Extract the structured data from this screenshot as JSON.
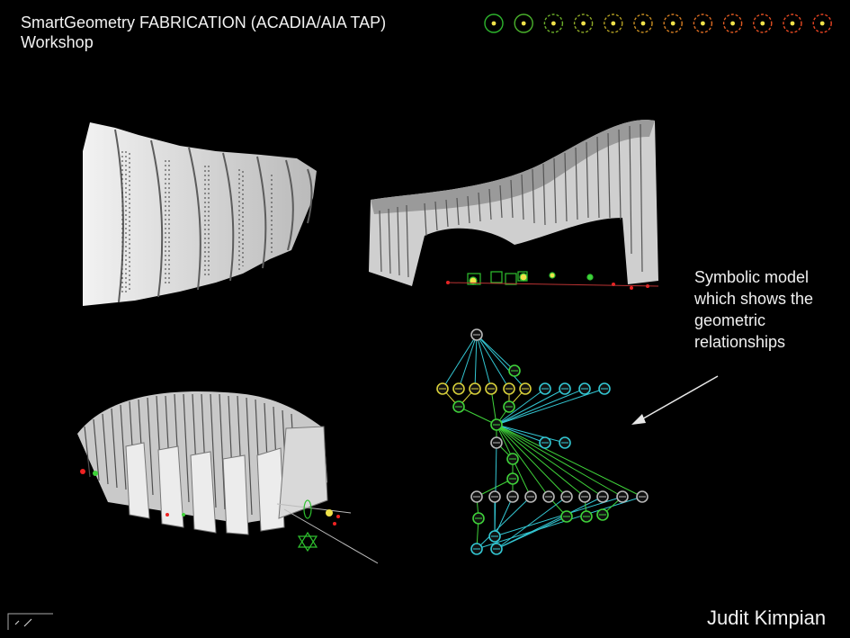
{
  "slide": {
    "title_line1": "SmartGeometry FABRICATION (ACADIA/AIA TAP)",
    "title_line2": "Workshop",
    "annotation": [
      "Symbolic model",
      "which shows the",
      "geometric",
      "relationships"
    ],
    "author": "Judit Kimpian"
  },
  "progress": {
    "total": 12,
    "colors": [
      "#2db52d",
      "#4ab22c",
      "#6caf2a",
      "#8fa927",
      "#b39f23",
      "#c98f22",
      "#d57d22",
      "#dc6b22",
      "#e25b22",
      "#e45022",
      "#e84a22",
      "#ea4422"
    ],
    "dot_color": "#f0e24a"
  },
  "colors": {
    "background": "#000000",
    "model_surface": "#d8d8d8",
    "graph_cyan": "#33c6d2",
    "graph_green": "#3fd23a",
    "graph_yellow": "#d8d03a",
    "graph_gray": "#b8b8b8"
  },
  "icons": {
    "corner": "slide-corner-icon",
    "arrow": "pointer-arrow-icon"
  }
}
